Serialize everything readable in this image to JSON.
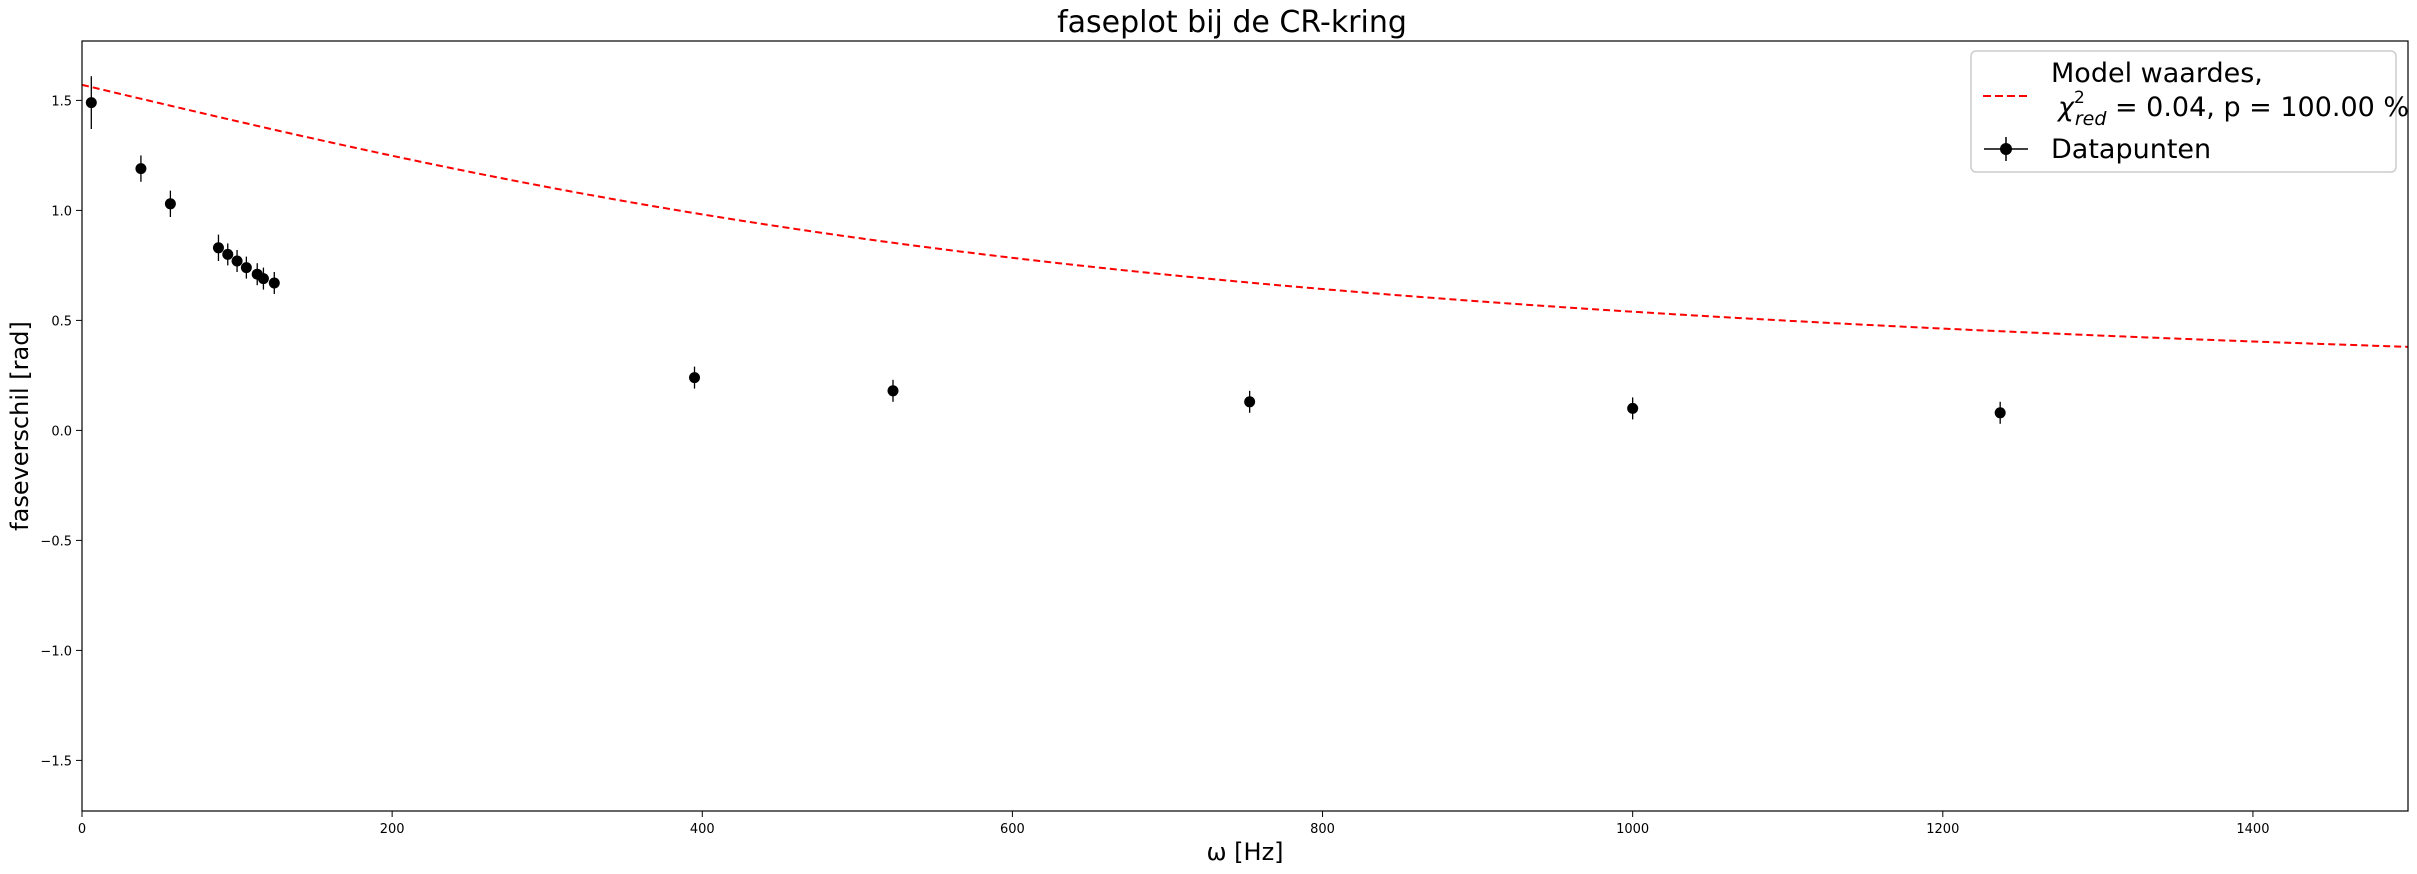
{
  "chart_data": {
    "type": "scatter",
    "title": "faseplot bij de CR-kring",
    "xlabel": "ω [Hz]",
    "ylabel": "faseverschil [rad]",
    "xlim": [
      0,
      1500
    ],
    "ylim": [
      -1.73,
      1.77
    ],
    "xticks": [
      0,
      200,
      400,
      600,
      800,
      1000,
      1200,
      1400
    ],
    "yticks": [
      -1.5,
      -1.0,
      -0.5,
      0.0,
      0.5,
      1.0,
      1.5
    ],
    "grid": false,
    "legend_position": "top-right",
    "model": {
      "name_line1": "Model waardes,",
      "name_chi_symbol": "χ",
      "name_chi_sup": "2",
      "name_chi_sub": "red",
      "name_rest": " = 0.04, p = 100.00 %",
      "color": "#ff0000",
      "style": "dashed",
      "tau": 0.00167
    },
    "datapoints": {
      "name": "Datapunten",
      "color": "#000000",
      "x": [
        6,
        38,
        57,
        88,
        94,
        100,
        106,
        113,
        117,
        124,
        395,
        523,
        753,
        1000,
        1237
      ],
      "y": [
        1.49,
        1.19,
        1.03,
        0.83,
        0.8,
        0.77,
        0.74,
        0.71,
        0.69,
        0.67,
        0.24,
        0.18,
        0.13,
        0.1,
        0.08
      ],
      "yerr": [
        0.12,
        0.06,
        0.06,
        0.06,
        0.05,
        0.05,
        0.05,
        0.05,
        0.05,
        0.05,
        0.05,
        0.05,
        0.05,
        0.05,
        0.05
      ]
    }
  }
}
